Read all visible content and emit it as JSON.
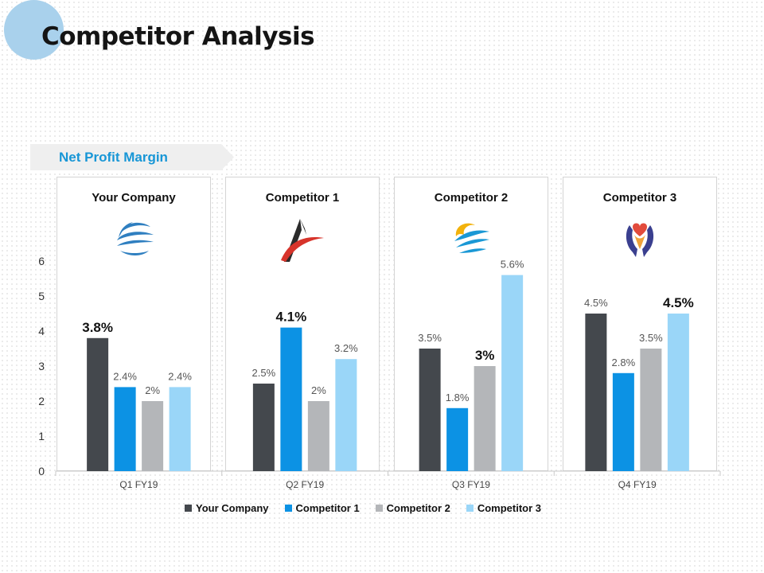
{
  "page": {
    "title": "Competitor Analysis",
    "section_label": "Net Profit Margin"
  },
  "panels": [
    {
      "title": "Your Company",
      "logo": "wave-swirl-logo-icon"
    },
    {
      "title": "Competitor 1",
      "logo": "letter-a-swoosh-logo-icon"
    },
    {
      "title": "Competitor 2",
      "logo": "sun-wave-logo-icon"
    },
    {
      "title": "Competitor 3",
      "logo": "heart-hands-logo-icon"
    }
  ],
  "colors": {
    "your_company": "#44484d",
    "competitor_1": "#0c92e4",
    "competitor_2": "#b4b6b9",
    "competitor_3": "#9ad6f8",
    "accent": "#1796d6"
  },
  "chart_data": {
    "type": "bar",
    "title": "Net Profit Margin",
    "categories": [
      "Q1 FY19",
      "Q2 FY19",
      "Q3 FY19",
      "Q4 FY19"
    ],
    "ylim": [
      0,
      6
    ],
    "yticks": [
      "0",
      "1",
      "2",
      "3",
      "4",
      "5",
      "6"
    ],
    "legend_position": "bottom",
    "series": [
      {
        "name": "Your Company",
        "values": [
          3.8,
          2.5,
          3.5,
          4.5
        ],
        "labels": [
          "3.8%",
          "2.5%",
          "3.5%",
          "4.5%"
        ],
        "color": "#44484d"
      },
      {
        "name": "Competitor 1",
        "values": [
          2.4,
          4.1,
          1.8,
          2.8
        ],
        "labels": [
          "2.4%",
          "4.1%",
          "1.8%",
          "2.8%"
        ],
        "color": "#0c92e4"
      },
      {
        "name": "Competitor 2",
        "values": [
          2,
          2,
          3,
          3.5
        ],
        "labels": [
          "2%",
          "2%",
          "3%",
          "3.5%"
        ],
        "color": "#b4b6b9"
      },
      {
        "name": "Competitor 3",
        "values": [
          2.4,
          3.2,
          5.6,
          4.5
        ],
        "labels": [
          "2.4%",
          "3.2%",
          "5.6%",
          "4.5%"
        ],
        "color": "#9ad6f8"
      }
    ],
    "highlighted_labels": [
      {
        "category": "Q1 FY19",
        "series": "Your Company"
      },
      {
        "category": "Q2 FY19",
        "series": "Competitor 1"
      },
      {
        "category": "Q3 FY19",
        "series": "Competitor 2"
      },
      {
        "category": "Q4 FY19",
        "series": "Competitor 3"
      }
    ]
  }
}
